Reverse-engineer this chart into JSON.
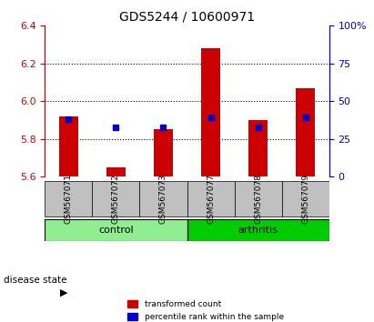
{
  "title": "GDS5244 / 10600971",
  "categories": [
    "GSM567071",
    "GSM567072",
    "GSM567073",
    "GSM567077",
    "GSM567078",
    "GSM567079"
  ],
  "red_values": [
    5.92,
    5.65,
    5.85,
    6.28,
    5.9,
    6.07
  ],
  "blue_values": [
    5.905,
    5.862,
    5.862,
    5.915,
    5.862,
    5.915
  ],
  "ymin": 5.6,
  "ymax": 6.4,
  "yticks_left": [
    5.6,
    5.8,
    6.0,
    6.2,
    6.4
  ],
  "yticks_right": [
    0,
    25,
    50,
    75,
    100
  ],
  "yticks_right_labels": [
    "0",
    "25",
    "50",
    "75",
    "100%"
  ],
  "grid_values": [
    5.8,
    6.0,
    6.2
  ],
  "control_group": [
    "GSM567071",
    "GSM567072",
    "GSM567073"
  ],
  "arthritis_group": [
    "GSM567077",
    "GSM567078",
    "GSM567079"
  ],
  "control_color": "#90EE90",
  "arthritis_color": "#00CC00",
  "bar_color": "#CC0000",
  "blue_marker_color": "#0000CC",
  "tick_area_color": "#C0C0C0",
  "disease_state_label": "disease state",
  "control_label": "control",
  "arthritis_label": "arthritis",
  "legend_red_label": "transformed count",
  "legend_blue_label": "percentile rank within the sample",
  "bar_width": 0.4,
  "base_value": 5.6
}
